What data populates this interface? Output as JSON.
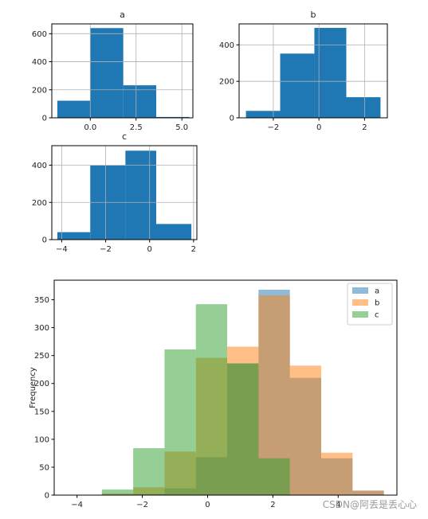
{
  "colors": {
    "hist": "#1f77b4",
    "a": "#1f77b4",
    "b": "#ff7f0e",
    "c": "#2ca02c"
  },
  "watermark": "CSDN@阿丢是丢心心",
  "chart_data": [
    {
      "type": "bar",
      "title": "a",
      "edges": [
        -1.8,
        0.0,
        1.8,
        3.6,
        5.4
      ],
      "values": [
        122,
        640,
        232,
        6
      ],
      "xlim": [
        -2.1,
        5.6
      ],
      "ylim": [
        0,
        670
      ],
      "xticks": [
        0.0,
        2.5,
        5.0
      ],
      "xtick_labels": [
        "0.0",
        "2.5",
        "5.0"
      ],
      "yticks": [
        0,
        200,
        400,
        600
      ],
      "ytick_labels": [
        "0",
        "200",
        "400",
        "600"
      ],
      "grid": true
    },
    {
      "type": "bar",
      "title": "b",
      "edges": [
        -3.2,
        -1.7,
        -0.2,
        1.2,
        2.7
      ],
      "values": [
        38,
        352,
        493,
        113
      ],
      "xlim": [
        -3.5,
        3.0
      ],
      "ylim": [
        0,
        515
      ],
      "xticks": [
        -2,
        0,
        2
      ],
      "xtick_labels": [
        "−2",
        "0",
        "2"
      ],
      "yticks": [
        0,
        200,
        400
      ],
      "ytick_labels": [
        "0",
        "200",
        "400"
      ],
      "grid": true
    },
    {
      "type": "bar",
      "title": "c",
      "edges": [
        -4.2,
        -2.7,
        -1.1,
        0.3,
        1.9
      ],
      "values": [
        40,
        398,
        478,
        84
      ],
      "xlim": [
        -4.45,
        2.15
      ],
      "ylim": [
        0,
        505
      ],
      "xticks": [
        -4,
        -2,
        0,
        2
      ],
      "xtick_labels": [
        "−4",
        "−2",
        "0",
        "2"
      ],
      "yticks": [
        0,
        200,
        400
      ],
      "ytick_labels": [
        "0",
        "200",
        "400"
      ],
      "grid": true
    },
    {
      "type": "bar",
      "ylabel": "Frequency",
      "edges": [
        -4.2,
        -3.24,
        -2.28,
        -1.32,
        -0.36,
        0.6,
        1.56,
        2.52,
        3.48,
        4.44,
        5.4
      ],
      "series": [
        {
          "name": "a",
          "values": [
            0,
            0,
            2,
            12,
            68,
            236,
            368,
            210,
            66,
            8,
            0
          ]
        },
        {
          "name": "b",
          "values": [
            0,
            3,
            14,
            78,
            246,
            266,
            358,
            232,
            76,
            8,
            0
          ]
        },
        {
          "name": "c",
          "values": [
            0,
            10,
            84,
            261,
            342,
            236,
            66,
            0,
            0,
            0,
            0
          ]
        }
      ],
      "xlim": [
        -4.7,
        5.8
      ],
      "ylim": [
        0,
        385
      ],
      "xticks": [
        -4,
        -2,
        0,
        2,
        4
      ],
      "xtick_labels": [
        "−4",
        "−2",
        "0",
        "2",
        "4"
      ],
      "yticks": [
        0,
        50,
        100,
        150,
        200,
        250,
        300,
        350
      ],
      "ytick_labels": [
        "0",
        "50",
        "100",
        "150",
        "200",
        "250",
        "300",
        "350"
      ],
      "legend": {
        "placement": "top-right",
        "entries": [
          "a",
          "b",
          "c"
        ]
      },
      "alpha": 0.5,
      "grid": false
    }
  ]
}
